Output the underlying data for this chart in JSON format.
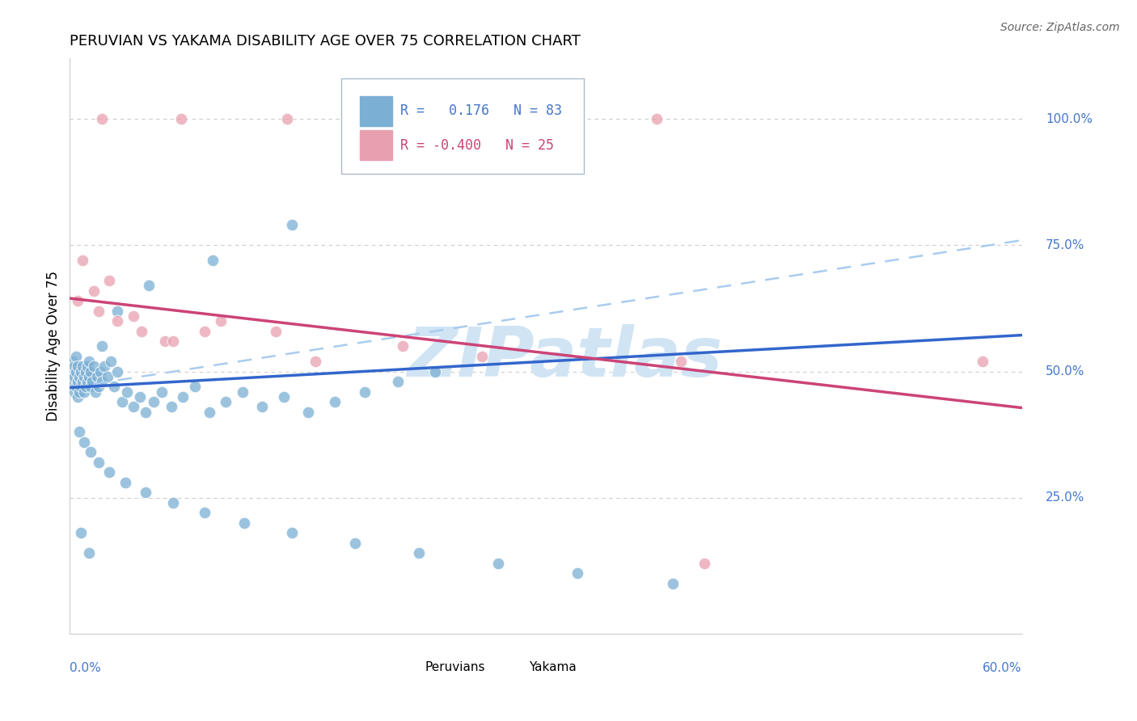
{
  "title": "PERUVIAN VS YAKAMA DISABILITY AGE OVER 75 CORRELATION CHART",
  "source": "Source: ZipAtlas.com",
  "ylabel": "Disability Age Over 75",
  "xlim": [
    0.0,
    0.6
  ],
  "ylim": [
    -0.02,
    1.12
  ],
  "blue_color": "#7bafd4",
  "pink_color": "#e8a0b0",
  "blue_line_color": "#3366cc",
  "pink_line_color": "#cc4477",
  "dashed_line_color": "#aaccee",
  "grid_color": "#cccccc",
  "watermark": "ZIPatlas",
  "watermark_color": "#d0e4f4",
  "label_color": "#4477cc",
  "peruvian_R": 0.176,
  "peruvian_N": 83,
  "yakama_R": -0.4,
  "yakama_N": 25,
  "blue_line_x0": 0.0,
  "blue_line_y0": 0.468,
  "blue_line_x1": 0.6,
  "blue_line_y1": 0.572,
  "dash_line_x0": 0.0,
  "dash_line_y0": 0.468,
  "dash_line_x1": 0.6,
  "dash_line_y1": 0.76,
  "pink_line_x0": 0.0,
  "pink_line_y0": 0.645,
  "pink_line_x1": 0.6,
  "pink_line_y1": 0.428,
  "peru_x": [
    0.001,
    0.002,
    0.002,
    0.003,
    0.003,
    0.003,
    0.004,
    0.004,
    0.004,
    0.005,
    0.005,
    0.005,
    0.006,
    0.006,
    0.007,
    0.007,
    0.008,
    0.008,
    0.009,
    0.009,
    0.01,
    0.01,
    0.011,
    0.011,
    0.012,
    0.012,
    0.013,
    0.013,
    0.014,
    0.015,
    0.016,
    0.017,
    0.018,
    0.019,
    0.02,
    0.022,
    0.024,
    0.026,
    0.028,
    0.03,
    0.033,
    0.036,
    0.04,
    0.044,
    0.048,
    0.053,
    0.058,
    0.064,
    0.071,
    0.079,
    0.088,
    0.098,
    0.109,
    0.121,
    0.135,
    0.15,
    0.167,
    0.186,
    0.207,
    0.23,
    0.006,
    0.009,
    0.013,
    0.018,
    0.025,
    0.035,
    0.048,
    0.065,
    0.085,
    0.11,
    0.14,
    0.18,
    0.22,
    0.27,
    0.32,
    0.38,
    0.14,
    0.09,
    0.05,
    0.03,
    0.007,
    0.012,
    0.02
  ],
  "peru_y": [
    0.48,
    0.5,
    0.52,
    0.46,
    0.49,
    0.51,
    0.47,
    0.5,
    0.53,
    0.45,
    0.48,
    0.51,
    0.46,
    0.49,
    0.47,
    0.5,
    0.48,
    0.51,
    0.46,
    0.49,
    0.47,
    0.5,
    0.48,
    0.51,
    0.49,
    0.52,
    0.47,
    0.5,
    0.48,
    0.51,
    0.46,
    0.49,
    0.47,
    0.5,
    0.48,
    0.51,
    0.49,
    0.52,
    0.47,
    0.5,
    0.44,
    0.46,
    0.43,
    0.45,
    0.42,
    0.44,
    0.46,
    0.43,
    0.45,
    0.47,
    0.42,
    0.44,
    0.46,
    0.43,
    0.45,
    0.42,
    0.44,
    0.46,
    0.48,
    0.5,
    0.38,
    0.36,
    0.34,
    0.32,
    0.3,
    0.28,
    0.26,
    0.24,
    0.22,
    0.2,
    0.18,
    0.16,
    0.14,
    0.12,
    0.1,
    0.08,
    0.79,
    0.72,
    0.67,
    0.62,
    0.18,
    0.14,
    0.55
  ],
  "yak_x": [
    0.02,
    0.07,
    0.137,
    0.193,
    0.273,
    0.37,
    0.015,
    0.04,
    0.06,
    0.095,
    0.13,
    0.155,
    0.21,
    0.26,
    0.005,
    0.018,
    0.03,
    0.045,
    0.065,
    0.085,
    0.385,
    0.575,
    0.4,
    0.008,
    0.025
  ],
  "yak_y": [
    1.0,
    1.0,
    1.0,
    1.0,
    1.0,
    1.0,
    0.66,
    0.61,
    0.56,
    0.6,
    0.58,
    0.52,
    0.55,
    0.53,
    0.64,
    0.62,
    0.6,
    0.58,
    0.56,
    0.58,
    0.52,
    0.52,
    0.12,
    0.72,
    0.68
  ]
}
